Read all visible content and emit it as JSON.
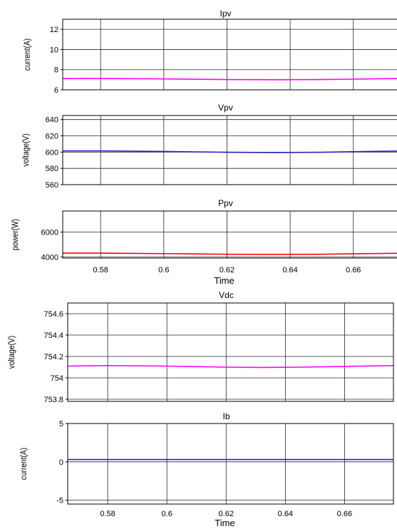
{
  "chart_data": [
    {
      "type": "line",
      "title": "Ipv",
      "xlabel": "",
      "ylabel": "current(A)",
      "xlim": [
        0.568,
        0.6745
      ],
      "ylim": [
        6,
        13
      ],
      "yticks": [
        6,
        8,
        10,
        12
      ],
      "xticks": [
        0.58,
        0.6,
        0.62,
        0.64,
        0.66
      ],
      "grid": true,
      "color": "#ff00ff",
      "series": [
        {
          "x": [
            0.568,
            0.58,
            0.6,
            0.62,
            0.635,
            0.65,
            0.66,
            0.6745
          ],
          "y": [
            7.12,
            7.13,
            7.08,
            7.02,
            7.0,
            7.02,
            7.06,
            7.12
          ]
        }
      ]
    },
    {
      "type": "line",
      "title": "Vpv",
      "xlabel": "",
      "ylabel": "voltage(V)",
      "xlim": [
        0.568,
        0.6745
      ],
      "ylim": [
        560,
        645
      ],
      "yticks": [
        560,
        580,
        600,
        620,
        640
      ],
      "xticks": [
        0.58,
        0.6,
        0.62,
        0.64,
        0.66
      ],
      "grid": true,
      "color": "#2323c8",
      "series": [
        {
          "x": [
            0.568,
            0.58,
            0.6,
            0.62,
            0.635,
            0.65,
            0.66,
            0.6745
          ],
          "y": [
            601.5,
            601.5,
            600.8,
            599.8,
            599.5,
            599.8,
            600.5,
            601.3
          ]
        }
      ]
    },
    {
      "type": "line",
      "title": "Ppv",
      "xlabel": "Time",
      "ylabel": "power(W)",
      "xlim": [
        0.568,
        0.6745
      ],
      "ylim": [
        3900,
        7700
      ],
      "yticks": [
        4000,
        6000
      ],
      "xticks": [
        0.58,
        0.6,
        0.62,
        0.64,
        0.66
      ],
      "xticklabels": [
        "0.58",
        "0.6",
        "0.62",
        "0.64",
        "0.66"
      ],
      "grid": true,
      "color": "#ff0000",
      "series": [
        {
          "x": [
            0.568,
            0.58,
            0.6,
            0.62,
            0.635,
            0.65,
            0.66,
            0.6745
          ],
          "y": [
            4300,
            4300,
            4260,
            4210,
            4200,
            4210,
            4250,
            4290
          ]
        }
      ]
    },
    {
      "type": "line",
      "title": "Vdc",
      "xlabel": "",
      "ylabel": "voltage(V)",
      "xlim": [
        0.5665,
        0.6765
      ],
      "ylim": [
        753.78,
        754.7
      ],
      "yticks": [
        753.8,
        754,
        754.2,
        754.4,
        754.6
      ],
      "xticks": [
        0.58,
        0.6,
        0.62,
        0.64,
        0.66
      ],
      "grid": true,
      "color": "#ff00ff",
      "series": [
        {
          "x": [
            0.5665,
            0.58,
            0.6,
            0.62,
            0.632,
            0.645,
            0.66,
            0.6765
          ],
          "y": [
            754.11,
            754.115,
            754.11,
            754.1,
            754.097,
            754.1,
            754.107,
            754.115
          ]
        }
      ]
    },
    {
      "type": "line",
      "title": "Ib",
      "xlabel": "Time",
      "ylabel": "current(A)",
      "xlim": [
        0.5665,
        0.6765
      ],
      "ylim": [
        -5.5,
        5
      ],
      "yticks": [
        -5,
        0,
        5
      ],
      "xticks": [
        0.58,
        0.6,
        0.62,
        0.64,
        0.66
      ],
      "xticklabels": [
        "0.58",
        "0.6",
        "0.62",
        "0.64",
        "0.66"
      ],
      "grid": true,
      "color": "#2323c8",
      "series": [
        {
          "x": [
            0.5665,
            0.6765
          ],
          "y": [
            0.3,
            0.3
          ]
        }
      ]
    }
  ]
}
